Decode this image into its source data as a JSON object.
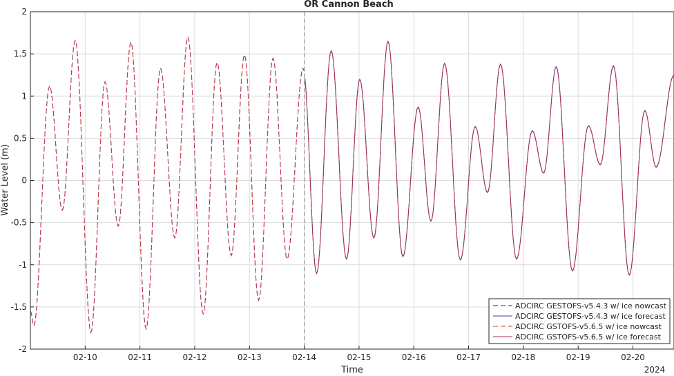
{
  "chart_data": {
    "type": "line",
    "title": "OR Cannon Beach",
    "xlabel": "Time",
    "ylabel": "Water Level (m)",
    "year_label": "2024",
    "xlim": [
      "2024-02-09 00:00",
      "2024-02-20 18:00"
    ],
    "ylim": [
      -2,
      2
    ],
    "grid": true,
    "legend_position": "bottom-right",
    "nowcast_forecast_split": "2024-02-14 00:00",
    "x_ticks": [
      {
        "value": "2024-02-10",
        "label": "02-10"
      },
      {
        "value": "2024-02-11",
        "label": "02-11"
      },
      {
        "value": "2024-02-12",
        "label": "02-12"
      },
      {
        "value": "2024-02-13",
        "label": "02-13"
      },
      {
        "value": "2024-02-14",
        "label": "02-14"
      },
      {
        "value": "2024-02-15",
        "label": "02-15"
      },
      {
        "value": "2024-02-16",
        "label": "02-16"
      },
      {
        "value": "2024-02-17",
        "label": "02-17"
      },
      {
        "value": "2024-02-18",
        "label": "02-18"
      },
      {
        "value": "2024-02-19",
        "label": "02-19"
      },
      {
        "value": "2024-02-20",
        "label": "02-20"
      }
    ],
    "y_ticks": [
      {
        "value": -2,
        "label": "-2"
      },
      {
        "value": -1.5,
        "label": "-1.5"
      },
      {
        "value": -1,
        "label": "-1"
      },
      {
        "value": -0.5,
        "label": "-0.5"
      },
      {
        "value": 0,
        "label": "0"
      },
      {
        "value": 0.5,
        "label": "0.5"
      },
      {
        "value": 1,
        "label": "1"
      },
      {
        "value": 1.5,
        "label": "1.5"
      },
      {
        "value": 2,
        "label": "2"
      }
    ],
    "tide_extrema": [
      {
        "t": "2024-02-09 00:00",
        "v": -1.55
      },
      {
        "t": "2024-02-09 01:30",
        "v": -1.72
      },
      {
        "t": "2024-02-09 08:24",
        "v": 1.12
      },
      {
        "t": "2024-02-09 14:00",
        "v": -0.35
      },
      {
        "t": "2024-02-09 19:39",
        "v": 1.66
      },
      {
        "t": "2024-02-10 02:33",
        "v": -1.8
      },
      {
        "t": "2024-02-10 08:42",
        "v": 1.17
      },
      {
        "t": "2024-02-10 14:30",
        "v": -0.54
      },
      {
        "t": "2024-02-10 20:03",
        "v": 1.64
      },
      {
        "t": "2024-02-11 02:42",
        "v": -1.76
      },
      {
        "t": "2024-02-11 09:00",
        "v": 1.33
      },
      {
        "t": "2024-02-11 15:18",
        "v": -0.68
      },
      {
        "t": "2024-02-11 21:00",
        "v": 1.7
      },
      {
        "t": "2024-02-12 03:42",
        "v": -1.58
      },
      {
        "t": "2024-02-12 09:48",
        "v": 1.4
      },
      {
        "t": "2024-02-12 16:00",
        "v": -0.89
      },
      {
        "t": "2024-02-12 21:48",
        "v": 1.49
      },
      {
        "t": "2024-02-13 04:00",
        "v": -1.42
      },
      {
        "t": "2024-02-13 10:18",
        "v": 1.45
      },
      {
        "t": "2024-02-13 16:30",
        "v": -0.93
      },
      {
        "t": "2024-02-13 23:30",
        "v": 1.33
      },
      {
        "t": "2024-02-14 05:24",
        "v": -1.1
      },
      {
        "t": "2024-02-14 11:48",
        "v": 1.54
      },
      {
        "t": "2024-02-14 18:30",
        "v": -0.93
      },
      {
        "t": "2024-02-15 00:18",
        "v": 1.2
      },
      {
        "t": "2024-02-15 06:30",
        "v": -0.68
      },
      {
        "t": "2024-02-15 12:42",
        "v": 1.65
      },
      {
        "t": "2024-02-15 19:12",
        "v": -0.9
      },
      {
        "t": "2024-02-16 01:54",
        "v": 0.87
      },
      {
        "t": "2024-02-16 07:30",
        "v": -0.48
      },
      {
        "t": "2024-02-16 13:30",
        "v": 1.39
      },
      {
        "t": "2024-02-16 20:24",
        "v": -0.94
      },
      {
        "t": "2024-02-17 02:54",
        "v": 0.64
      },
      {
        "t": "2024-02-17 08:18",
        "v": -0.14
      },
      {
        "t": "2024-02-17 14:00",
        "v": 1.38
      },
      {
        "t": "2024-02-17 21:00",
        "v": -0.93
      },
      {
        "t": "2024-02-18 03:54",
        "v": 0.59
      },
      {
        "t": "2024-02-18 08:54",
        "v": 0.09
      },
      {
        "t": "2024-02-18 14:24",
        "v": 1.35
      },
      {
        "t": "2024-02-18 21:30",
        "v": -1.07
      },
      {
        "t": "2024-02-19 04:30",
        "v": 0.65
      },
      {
        "t": "2024-02-19 09:42",
        "v": 0.19
      },
      {
        "t": "2024-02-19 15:30",
        "v": 1.36
      },
      {
        "t": "2024-02-19 22:24",
        "v": -1.12
      },
      {
        "t": "2024-02-20 05:12",
        "v": 0.83
      },
      {
        "t": "2024-02-20 10:12",
        "v": 0.16
      },
      {
        "t": "2024-02-20 18:00",
        "v": 1.25
      }
    ],
    "series": [
      {
        "name": "ADCIRC GESTOFS-v5.4.3 w/ ice nowcast",
        "color": "#1f1f9f",
        "dash": "dashed",
        "range": "nowcast"
      },
      {
        "name": "ADCIRC GESTOFS-v5.4.3 w/ ice forecast",
        "color": "#3b3bd6",
        "dash": "solid",
        "range": "forecast"
      },
      {
        "name": "ADCIRC GSTOFS-v5.6.5 w/ ice nowcast",
        "color": "#d43a3a",
        "dash": "dashed",
        "range": "nowcast"
      },
      {
        "name": "ADCIRC GSTOFS-v5.6.5 w/ ice forecast",
        "color": "#a8324f",
        "dash": "solid",
        "range": "forecast"
      }
    ]
  }
}
